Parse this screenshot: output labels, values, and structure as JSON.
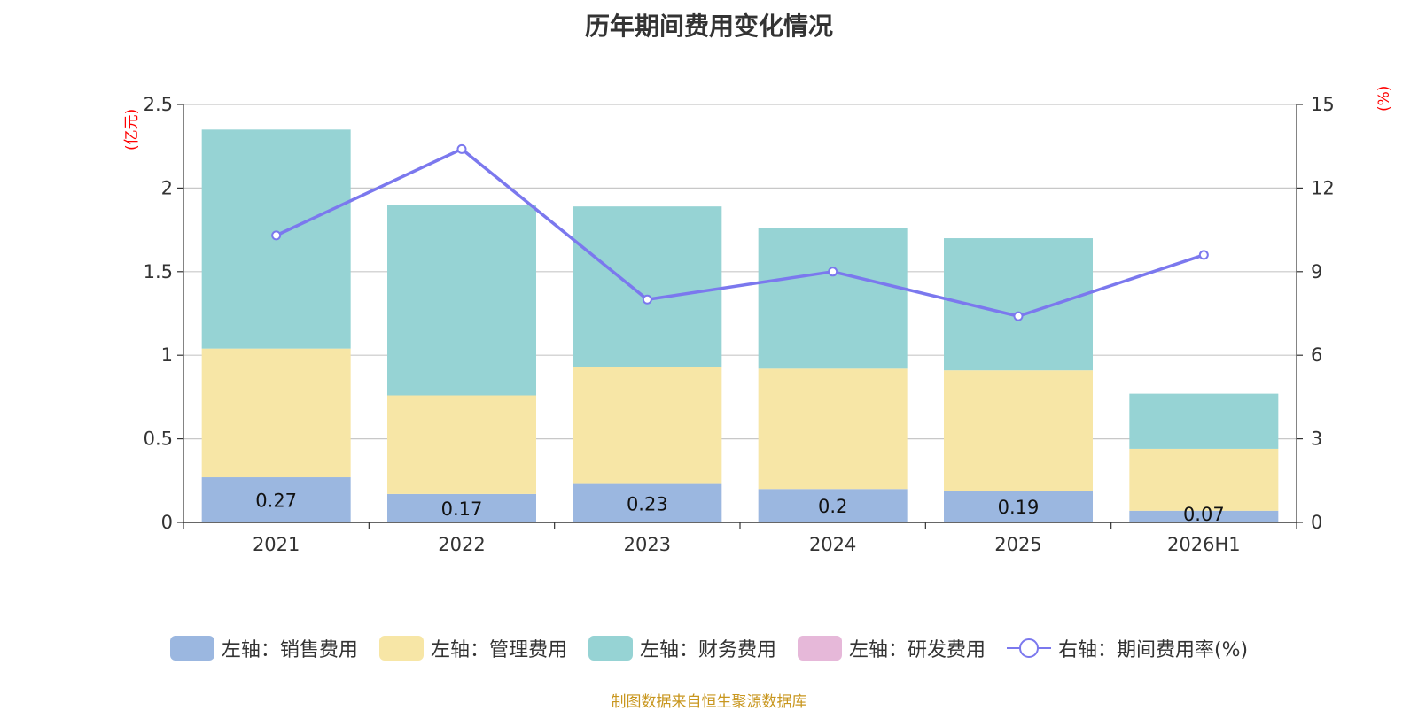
{
  "title": "历年期间费用变化情况",
  "left_unit": "(亿元)",
  "right_unit": "(%)",
  "source": "制图数据来自恒生聚源数据库",
  "colors": {
    "sales": "#9bb7e0",
    "admin": "#f7e6a6",
    "finance": "#96d3d4",
    "rnd": "#e6b8d9",
    "rate_line": "#7b78ee"
  },
  "chart_data": {
    "type": "bar",
    "stacked": true,
    "categories": [
      "2021",
      "2022",
      "2023",
      "2024",
      "2025",
      "2026H1"
    ],
    "series": [
      {
        "name": "左轴：销售费用",
        "axis": "left",
        "values": [
          0.27,
          0.17,
          0.23,
          0.2,
          0.19,
          0.07
        ]
      },
      {
        "name": "左轴：管理费用",
        "axis": "left",
        "values": [
          0.77,
          0.59,
          0.7,
          0.72,
          0.72,
          0.37
        ]
      },
      {
        "name": "左轴：财务费用",
        "axis": "left",
        "values": [
          1.31,
          1.14,
          0.96,
          0.84,
          0.79,
          0.33
        ]
      },
      {
        "name": "左轴：研发费用",
        "axis": "left",
        "values": [
          0,
          0,
          0,
          0,
          0,
          0
        ]
      },
      {
        "name": "右轴：期间费用率(%)",
        "axis": "right",
        "type": "line",
        "values": [
          10.3,
          13.4,
          8.0,
          9.0,
          7.4,
          9.6
        ]
      }
    ],
    "data_labels": [
      "0.27",
      "0.17",
      "0.23",
      "0.2",
      "0.19",
      "0.07"
    ],
    "y_left": {
      "min": 0,
      "max": 2.5,
      "ticks": [
        "0",
        "0.5",
        "1",
        "1.5",
        "2",
        "2.5"
      ]
    },
    "y_right": {
      "min": 0,
      "max": 15,
      "ticks": [
        "0",
        "3",
        "6",
        "9",
        "12",
        "15"
      ]
    },
    "grid": true,
    "legend_position": "bottom"
  }
}
